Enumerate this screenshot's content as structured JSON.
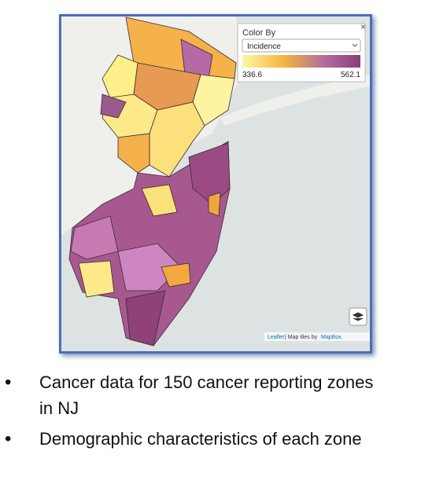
{
  "map": {
    "legend": {
      "title": "Color By",
      "selected": "Incidence",
      "min": 336.6,
      "max": 562.1,
      "close": "×"
    },
    "attribution": {
      "leaflet": "Leaflet",
      "tiles": "| Map tiles by",
      "provider": "MapBox."
    }
  },
  "bullets": [
    "Cancer data for 150 cancer reporting zones in NJ",
    "Demographic characteristics of each zone"
  ]
}
